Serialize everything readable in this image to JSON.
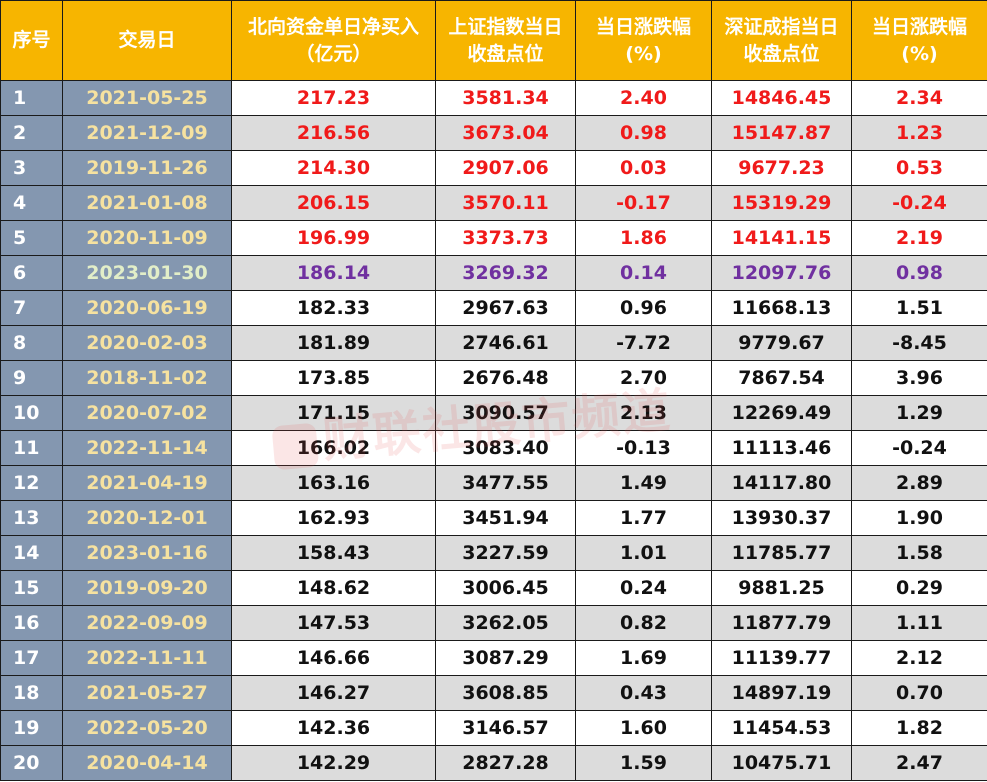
{
  "headers": [
    [
      "序号"
    ],
    [
      "交易日"
    ],
    [
      "北向资金单日净买入",
      "（亿元）"
    ],
    [
      "上证指数当日",
      "收盘点位"
    ],
    [
      "当日涨跌幅",
      "(%)"
    ],
    [
      "深证成指当日",
      "收盘点位"
    ],
    [
      "当日涨跌幅",
      "(%)"
    ]
  ],
  "rows": [
    {
      "idx": "1",
      "date": "2021-05-25",
      "net_buy": "217.23",
      "sh_close": "3581.34",
      "sh_chg": "2.40",
      "sz_close": "14846.45",
      "sz_chg": "2.34",
      "style": "red"
    },
    {
      "idx": "2",
      "date": "2021-12-09",
      "net_buy": "216.56",
      "sh_close": "3673.04",
      "sh_chg": "0.98",
      "sz_close": "15147.87",
      "sz_chg": "1.23",
      "style": "red"
    },
    {
      "idx": "3",
      "date": "2019-11-26",
      "net_buy": "214.30",
      "sh_close": "2907.06",
      "sh_chg": "0.03",
      "sz_close": "9677.23",
      "sz_chg": "0.53",
      "style": "red"
    },
    {
      "idx": "4",
      "date": "2021-01-08",
      "net_buy": "206.15",
      "sh_close": "3570.11",
      "sh_chg": "-0.17",
      "sz_close": "15319.29",
      "sz_chg": "-0.24",
      "style": "red"
    },
    {
      "idx": "5",
      "date": "2020-11-09",
      "net_buy": "196.99",
      "sh_close": "3373.73",
      "sh_chg": "1.86",
      "sz_close": "14141.15",
      "sz_chg": "2.19",
      "style": "red"
    },
    {
      "idx": "6",
      "date": "2023-01-30",
      "net_buy": "186.14",
      "sh_close": "3269.32",
      "sh_chg": "0.14",
      "sz_close": "12097.76",
      "sz_chg": "0.98",
      "style": "purple"
    },
    {
      "idx": "7",
      "date": "2020-06-19",
      "net_buy": "182.33",
      "sh_close": "2967.63",
      "sh_chg": "0.96",
      "sz_close": "11668.13",
      "sz_chg": "1.51",
      "style": "black"
    },
    {
      "idx": "8",
      "date": "2020-02-03",
      "net_buy": "181.89",
      "sh_close": "2746.61",
      "sh_chg": "-7.72",
      "sz_close": "9779.67",
      "sz_chg": "-8.45",
      "style": "black"
    },
    {
      "idx": "9",
      "date": "2018-11-02",
      "net_buy": "173.85",
      "sh_close": "2676.48",
      "sh_chg": "2.70",
      "sz_close": "7867.54",
      "sz_chg": "3.96",
      "style": "black"
    },
    {
      "idx": "10",
      "date": "2020-07-02",
      "net_buy": "171.15",
      "sh_close": "3090.57",
      "sh_chg": "2.13",
      "sz_close": "12269.49",
      "sz_chg": "1.29",
      "style": "black"
    },
    {
      "idx": "11",
      "date": "2022-11-14",
      "net_buy": "166.02",
      "sh_close": "3083.40",
      "sh_chg": "-0.13",
      "sz_close": "11113.46",
      "sz_chg": "-0.24",
      "style": "black"
    },
    {
      "idx": "12",
      "date": "2021-04-19",
      "net_buy": "163.16",
      "sh_close": "3477.55",
      "sh_chg": "1.49",
      "sz_close": "14117.80",
      "sz_chg": "2.89",
      "style": "black"
    },
    {
      "idx": "13",
      "date": "2020-12-01",
      "net_buy": "162.93",
      "sh_close": "3451.94",
      "sh_chg": "1.77",
      "sz_close": "13930.37",
      "sz_chg": "1.90",
      "style": "black"
    },
    {
      "idx": "14",
      "date": "2023-01-16",
      "net_buy": "158.43",
      "sh_close": "3227.59",
      "sh_chg": "1.01",
      "sz_close": "11785.77",
      "sz_chg": "1.58",
      "style": "black"
    },
    {
      "idx": "15",
      "date": "2019-09-20",
      "net_buy": "148.62",
      "sh_close": "3006.45",
      "sh_chg": "0.24",
      "sz_close": "9881.25",
      "sz_chg": "0.29",
      "style": "black"
    },
    {
      "idx": "16",
      "date": "2022-09-09",
      "net_buy": "147.53",
      "sh_close": "3262.05",
      "sh_chg": "0.82",
      "sz_close": "11877.79",
      "sz_chg": "1.11",
      "style": "black"
    },
    {
      "idx": "17",
      "date": "2022-11-11",
      "net_buy": "146.66",
      "sh_close": "3087.29",
      "sh_chg": "1.69",
      "sz_close": "11139.77",
      "sz_chg": "2.12",
      "style": "black"
    },
    {
      "idx": "18",
      "date": "2021-05-27",
      "net_buy": "146.27",
      "sh_close": "3608.85",
      "sh_chg": "0.43",
      "sz_close": "14897.19",
      "sz_chg": "0.70",
      "style": "black"
    },
    {
      "idx": "19",
      "date": "2022-05-20",
      "net_buy": "142.36",
      "sh_close": "3146.57",
      "sh_chg": "1.60",
      "sz_close": "11454.53",
      "sz_chg": "1.82",
      "style": "black"
    },
    {
      "idx": "20",
      "date": "2020-04-14",
      "net_buy": "142.29",
      "sh_close": "2827.28",
      "sh_chg": "1.59",
      "sz_close": "10475.71",
      "sz_chg": "2.47",
      "style": "black"
    }
  ],
  "watermark": {
    "text": "财联社股市频道",
    "icon": "cls-logo-icon"
  },
  "colors": {
    "header_bg": "#f7b500",
    "index_bg": "#8497b0",
    "up_red": "#f01a1a",
    "highlight_purple": "#7030a0",
    "stripe_gray": "#dcdcdc"
  }
}
